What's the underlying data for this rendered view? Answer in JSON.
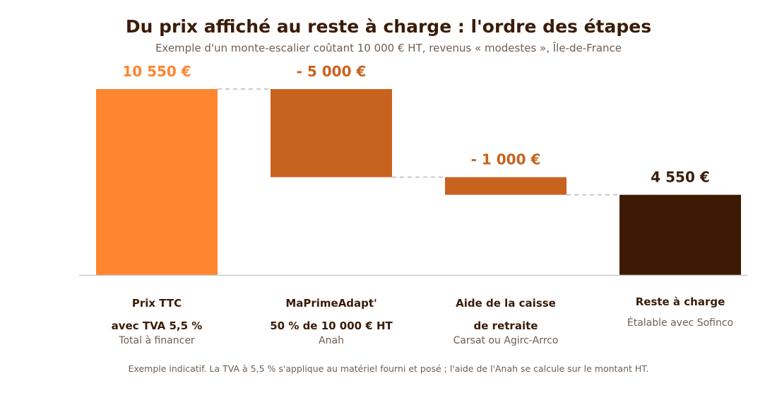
{
  "colors": {
    "title": "#3b1c08",
    "muted": "#6f5e52",
    "connector": "#c9c9c9",
    "axis": "#c9c9c9"
  },
  "chart_data": {
    "type": "bar",
    "subtype": "waterfall",
    "title": "Du prix affiché au reste à charge : l'ordre des étapes",
    "subtitle": "Exemple d'un monte-escalier coûtant 10 000 € HT, revenus « modestes », Île-de-France",
    "ylim": [
      0,
      10550
    ],
    "grid": false,
    "legend": "none",
    "categories": [
      "Prix TTC",
      "MaPrimeAdapt'",
      "Aide de la caisse de retraite",
      "Reste à charge"
    ],
    "steps": [
      {
        "label_lines": [
          "Prix TTC",
          "avec TVA 5,5 %"
        ],
        "note": "Total à financer",
        "kind": "total",
        "value": 10550,
        "value_label": "10 550 €",
        "color": "#ff8530",
        "label_color": "#ff8530"
      },
      {
        "label_lines": [
          "MaPrimeAdapt'",
          "50 % de 10 000 € HT"
        ],
        "note": "Anah",
        "kind": "delta",
        "value": -5000,
        "value_label": "- 5 000 €",
        "color": "#c8621f",
        "label_color": "#c8621f"
      },
      {
        "label_lines": [
          "Aide de la caisse",
          "de retraite"
        ],
        "note": "Carsat ou Agirc-Arrco",
        "kind": "delta",
        "value": -1000,
        "value_label": "- 1 000 €",
        "color": "#c8621f",
        "label_color": "#c8621f"
      },
      {
        "label_lines": [
          "Reste à charge"
        ],
        "note": "Étalable avec Sofinco",
        "kind": "total",
        "value": 4550,
        "value_label": "4 550 €",
        "color": "#3d1a03",
        "label_color": "#3b1c08"
      }
    ],
    "footnote": "Exemple indicatif. La TVA à 5,5 % s'applique au matériel fourni et posé ; l'aide de l'Anah se calcule sur le montant HT."
  }
}
